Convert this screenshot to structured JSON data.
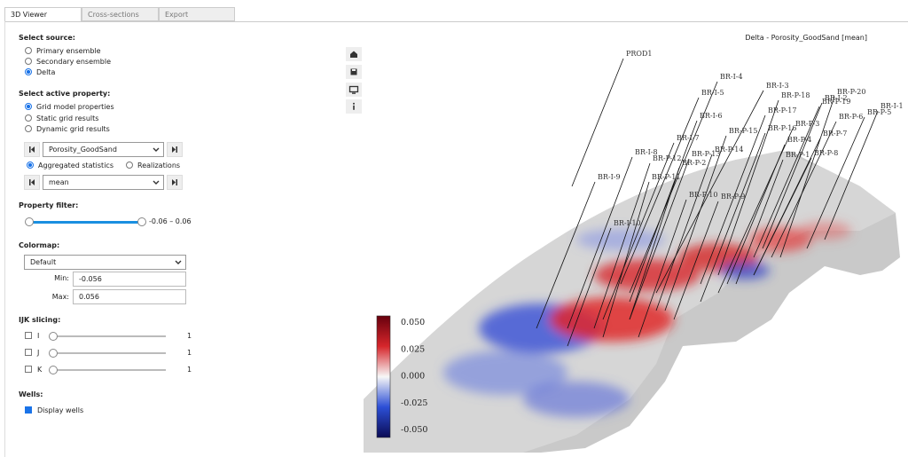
{
  "tabs": [
    "3D Viewer",
    "Cross-sections",
    "Export"
  ],
  "panel": {
    "source": {
      "title": "Select source:",
      "options": [
        "Primary ensemble",
        "Secondary ensemble",
        "Delta"
      ]
    },
    "property": {
      "title": "Select active property:",
      "options": [
        "Grid model properties",
        "Static grid results",
        "Dynamic grid results"
      ],
      "selected": "Porosity_GoodSand",
      "stat_options": [
        "Aggregated statistics",
        "Realizations"
      ],
      "statistic": "mean"
    },
    "filter": {
      "title": "Property filter:",
      "range_label": "-0.06 – 0.06"
    },
    "colormap": {
      "title": "Colormap:",
      "selected": "Default",
      "min_label": "Min:",
      "min": "-0.056",
      "max_label": "Max:",
      "max": "0.056"
    },
    "ijk": {
      "title": "IJK slicing:",
      "axes": [
        "I",
        "J",
        "K"
      ],
      "values": [
        "1",
        "1",
        "1"
      ]
    },
    "wells": {
      "title": "Wells:",
      "display": "Display wells"
    }
  },
  "viewer": {
    "title": "Delta - Porosity_GoodSand [mean]",
    "colorbar": [
      "0.050",
      "0.025",
      "0.000",
      "-0.025",
      "-0.050"
    ],
    "wells": [
      "PROD1",
      "BR-I-4",
      "BR-I-5",
      "BR-I-3",
      "BR-P-18",
      "BR-P-20",
      "BR-I-2",
      "BR-P-19",
      "BR-I-1",
      "BR-P-5",
      "BR-P-17",
      "BR-I-6",
      "BR-P-6",
      "BR-P-3",
      "BR-P-15",
      "BR-P-16",
      "BR-P-7",
      "BR-I-7",
      "BR-P-4",
      "BR-P-14",
      "BR-I-8",
      "BR-P-13",
      "BR-P-12",
      "BR-P-1",
      "BR-P-8",
      "BR-P-2",
      "BR-I-9",
      "BR-P-11",
      "BR-P-10",
      "BR-P-9",
      "BR-I-10"
    ]
  }
}
